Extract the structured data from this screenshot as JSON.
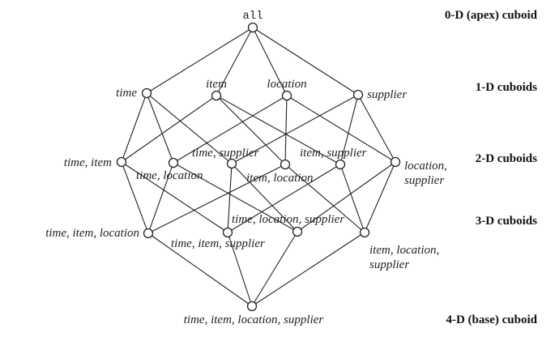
{
  "levels": {
    "apex": "0-D (apex) cuboid",
    "one_d": "1-D cuboids",
    "two_d": "2-D cuboids",
    "three_d": "3-D cuboids",
    "base": "4-D (base) cuboid"
  },
  "nodes": {
    "all": "all",
    "time": "time",
    "item": "item",
    "location": "location",
    "supplier": "supplier",
    "time_item": "time, item",
    "time_location": "time, location",
    "time_supplier": "time, supplier",
    "item_location": "item, location",
    "item_supplier": "item, supplier",
    "location_supplier_1": "location,",
    "location_supplier_2": "supplier",
    "time_item_location": "time, item, location",
    "time_item_supplier": "time, item, supplier",
    "time_location_supplier": "time, location, supplier",
    "item_location_supplier_1": "item, location,",
    "item_location_supplier_2": "supplier",
    "base": "time, item, location, supplier"
  }
}
